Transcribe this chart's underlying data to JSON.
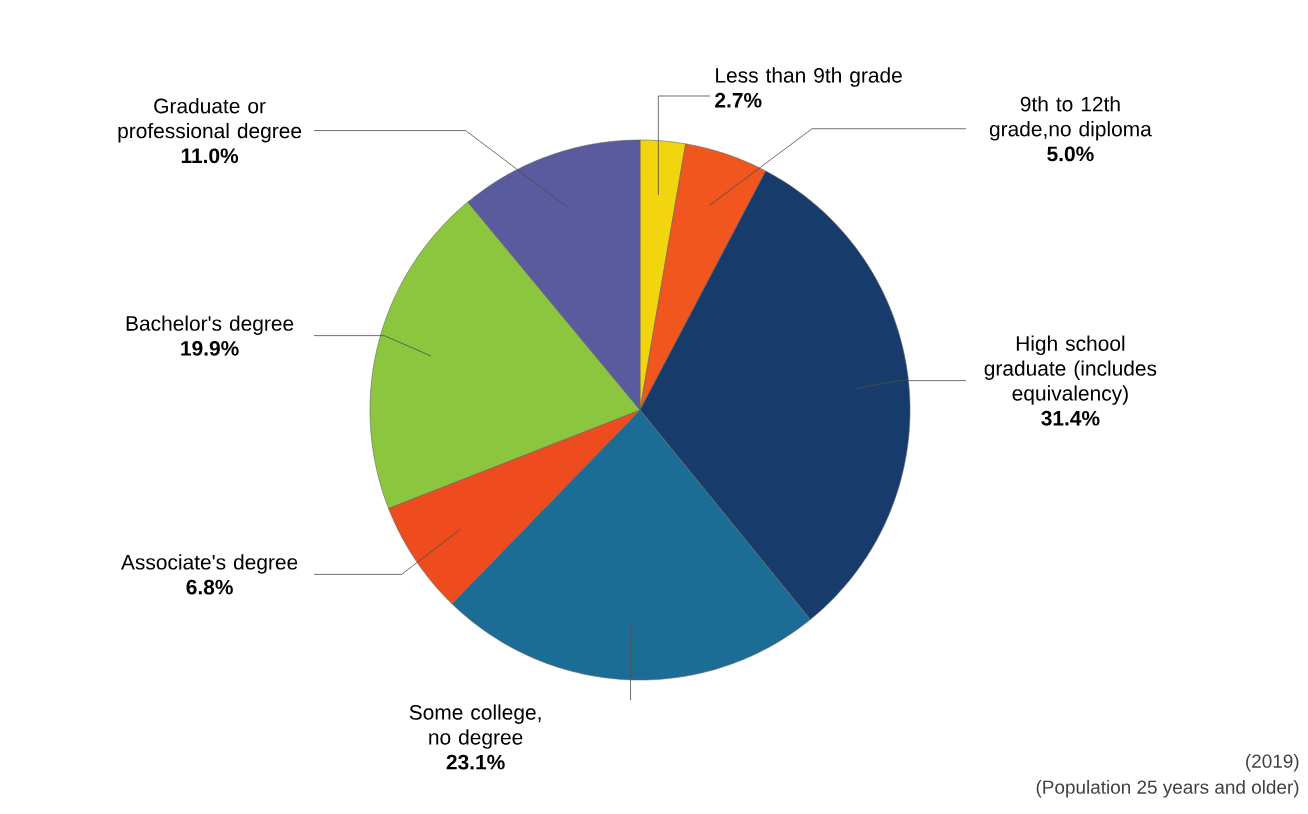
{
  "chart_data": {
    "type": "pie",
    "categories": [
      "Less than 9th grade",
      "9th to 12th grade,no diploma",
      "High school graduate (includes equivalency)",
      "Some college, no degree",
      "Associate's degree",
      "Bachelor's degree",
      "Graduate or professional degree"
    ],
    "values": [
      2.7,
      5.0,
      31.4,
      23.1,
      6.8,
      19.9,
      11.0
    ],
    "value_labels": [
      "2.7%",
      "5.0%",
      "31.4%",
      "23.1%",
      "6.8%",
      "19.9%",
      "11.0%"
    ],
    "colors": [
      "#f2d40f",
      "#f0561e",
      "#173c6b",
      "#1b6d96",
      "#ee4b1f",
      "#8cc63f",
      "#5a5a9e"
    ],
    "annotations": [
      "(2019)",
      "(Population 25 years and older)"
    ]
  }
}
